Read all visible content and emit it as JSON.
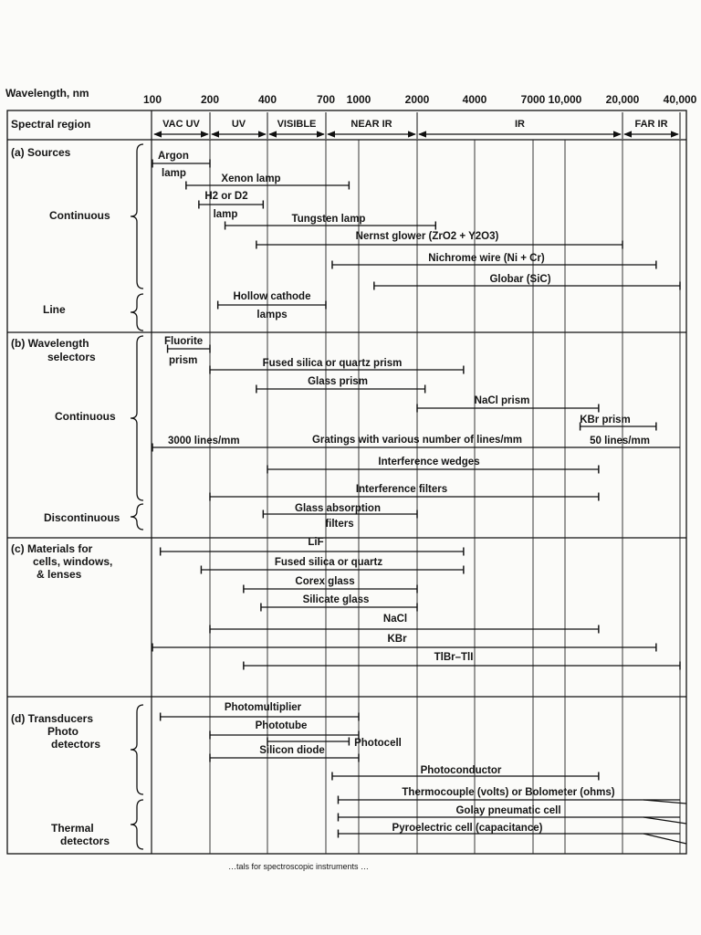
{
  "header": {
    "wavelength_label": "Wavelength, nm",
    "spectral_label": "Spectral region",
    "ticks": [
      "100",
      "200",
      "400",
      "700",
      "1000",
      "2000",
      "4000",
      "7000",
      "10,000",
      "20,000",
      "40,000"
    ],
    "regions": [
      "VAC UV",
      "UV",
      "VISIBLE",
      "NEAR IR",
      "IR",
      "FAR IR"
    ]
  },
  "sections": {
    "sources": {
      "title": "(a) Sources",
      "continuous": "Continuous",
      "line": "Line",
      "items": [
        {
          "label": "Argon",
          "label2": "lamp",
          "from": "100",
          "to": "200"
        },
        {
          "label": "Xenon lamp",
          "from": "150",
          "to": "900"
        },
        {
          "label": "H2 or D2",
          "label2": "lamp",
          "from": "175",
          "to": "380"
        },
        {
          "label": "Tungsten lamp",
          "from": "240",
          "to": "2500"
        },
        {
          "label": "Nernst glower (ZrO2 + Y2O3)",
          "from": "350",
          "to": "20,000"
        },
        {
          "label": "Nichrome wire (Ni + Cr)",
          "from": "750",
          "to": "30,000"
        },
        {
          "label": "Globar (SiC)",
          "from": "1200",
          "to": "40,000"
        },
        {
          "label": "Hollow cathode",
          "label2": "lamps",
          "from": "220",
          "to": "700"
        }
      ]
    },
    "selectors": {
      "title": "(b) Wavelength",
      "title2": "selectors",
      "continuous": "Continuous",
      "discontinuous": "Discontinuous",
      "items": [
        {
          "label": "Fluorite",
          "label2": "prism",
          "from": "120",
          "to": "200"
        },
        {
          "label": "Fused silica or quartz prism",
          "from": "200",
          "to": "3500"
        },
        {
          "label": "Glass prism",
          "from": "350",
          "to": "2200"
        },
        {
          "label": "NaCl prism",
          "from": "2000",
          "to": "15,000"
        },
        {
          "label": "KBr prism",
          "from": "12,000",
          "to": "30,000"
        },
        {
          "label": "Gratings with various number of lines/mm",
          "left_note": "3000 lines/mm",
          "right_note": "50 lines/mm",
          "from": "100",
          "to": "40,000"
        },
        {
          "label": "Interference wedges",
          "from": "400",
          "to": "15,000"
        },
        {
          "label": "Interference filters",
          "from": "200",
          "to": "15,000"
        },
        {
          "label": "Glass absorption",
          "label2": "filters",
          "from": "380",
          "to": "2000"
        }
      ]
    },
    "materials": {
      "title": "(c) Materials for",
      "title2": "cells, windows,",
      "title3": "& lenses",
      "items": [
        {
          "label": "LiF",
          "from": "110",
          "to": "3500"
        },
        {
          "label": "Fused silica or quartz",
          "from": "180",
          "to": "3500"
        },
        {
          "label": "Corex glass",
          "from": "300",
          "to": "2000"
        },
        {
          "label": "Silicate glass",
          "from": "370",
          "to": "2000"
        },
        {
          "label": "NaCl",
          "from": "200",
          "to": "15,000"
        },
        {
          "label": "KBr",
          "from": "100",
          "to": "30,000"
        },
        {
          "label": "TlBr–TlI",
          "from": "300",
          "to": "40,000"
        }
      ]
    },
    "transducers": {
      "title": "(d) Transducers",
      "title2": "Photo",
      "title3": "detectors",
      "thermal": "Thermal",
      "thermal2": "detectors",
      "items": [
        {
          "label": "Photomultiplier",
          "from": "110",
          "to": "1000"
        },
        {
          "label": "Phototube",
          "from": "200",
          "to": "1000"
        },
        {
          "label": "Photocell",
          "from": "400",
          "to": "900"
        },
        {
          "label": "Silicon diode",
          "from": "200",
          "to": "1000"
        },
        {
          "label": "Photoconductor",
          "from": "750",
          "to": "15,000"
        },
        {
          "label": "Thermocouple (volts) or Bolometer (ohms)",
          "from": "800",
          "to": "40,000"
        },
        {
          "label": "Golay pneumatic cell",
          "from": "800",
          "to": "40,000"
        },
        {
          "label": "Pyroelectric cell (capacitance)",
          "from": "800",
          "to": "40,000"
        }
      ]
    }
  },
  "footer_fragment": "…tals for spectroscopic instruments …"
}
